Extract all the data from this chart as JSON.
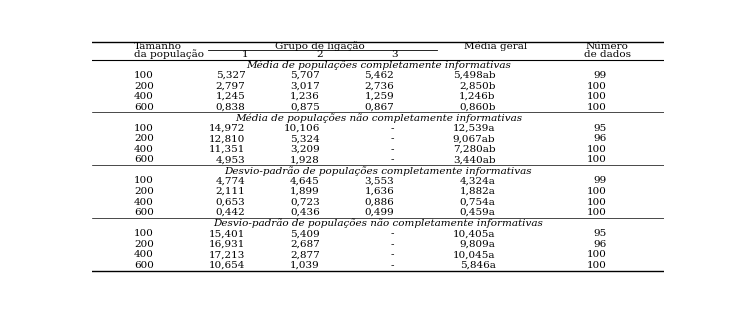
{
  "sections": [
    {
      "label": "Média de populações completamente informativas",
      "rows": [
        {
          "pop": "100",
          "g1": "5,327",
          "g2": "5,707",
          "g3": "5,462",
          "media": "5,498ab",
          "n": "99"
        },
        {
          "pop": "200",
          "g1": "2,797",
          "g2": "3,017",
          "g3": "2,736",
          "media": "2,850b",
          "n": "100"
        },
        {
          "pop": "400",
          "g1": "1,245",
          "g2": "1,236",
          "g3": "1,259",
          "media": "1,246b",
          "n": "100"
        },
        {
          "pop": "600",
          "g1": "0,838",
          "g2": "0,875",
          "g3": "0,867",
          "media": "0,860b",
          "n": "100"
        }
      ]
    },
    {
      "label": "Média de populações não completamente informativas",
      "rows": [
        {
          "pop": "100",
          "g1": "14,972",
          "g2": "10,106",
          "g3": "-",
          "media": "12,539a",
          "n": "95"
        },
        {
          "pop": "200",
          "g1": "12,810",
          "g2": "5,324",
          "g3": "-",
          "media": "9,067ab",
          "n": "96"
        },
        {
          "pop": "400",
          "g1": "11,351",
          "g2": "3,209",
          "g3": "-",
          "media": "7,280ab",
          "n": "100"
        },
        {
          "pop": "600",
          "g1": "4,953",
          "g2": "1,928",
          "g3": "-",
          "media": "3,440ab",
          "n": "100"
        }
      ]
    },
    {
      "label": "Desvio-padrão de populações completamente informativas",
      "rows": [
        {
          "pop": "100",
          "g1": "4,774",
          "g2": "4,645",
          "g3": "3,553",
          "media": "4,324a",
          "n": "99"
        },
        {
          "pop": "200",
          "g1": "2,111",
          "g2": "1,899",
          "g3": "1,636",
          "media": "1,882a",
          "n": "100"
        },
        {
          "pop": "400",
          "g1": "0,653",
          "g2": "0,723",
          "g3": "0,886",
          "media": "0,754a",
          "n": "100"
        },
        {
          "pop": "600",
          "g1": "0,442",
          "g2": "0,436",
          "g3": "0,499",
          "media": "0,459a",
          "n": "100"
        }
      ]
    },
    {
      "label": "Desvio-padrão de populações não completamente informativas",
      "rows": [
        {
          "pop": "100",
          "g1": "15,401",
          "g2": "5,409",
          "g3": "-",
          "media": "10,405a",
          "n": "95"
        },
        {
          "pop": "200",
          "g1": "16,931",
          "g2": "2,687",
          "g3": "-",
          "media": "9,809a",
          "n": "96"
        },
        {
          "pop": "400",
          "g1": "17,213",
          "g2": "2,877",
          "g3": "-",
          "media": "10,045a",
          "n": "100"
        },
        {
          "pop": "600",
          "g1": "10,654",
          "g2": "1,039",
          "g3": "-",
          "media": "5,846a",
          "n": "100"
        }
      ]
    }
  ],
  "col_x": {
    "pop": 0.073,
    "g1": 0.268,
    "g2": 0.398,
    "g3": 0.528,
    "media": 0.705,
    "n": 0.9
  },
  "font_size": 7.5,
  "bg_color": "#ffffff",
  "text_color": "#000000"
}
